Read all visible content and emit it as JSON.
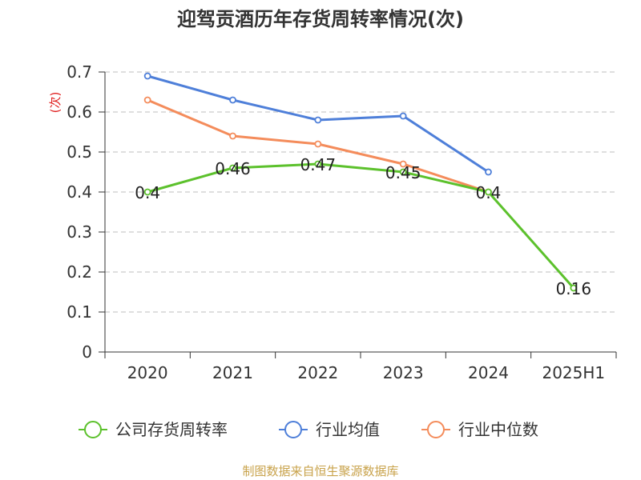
{
  "chart_data": {
    "type": "line",
    "title": "迎驾贡酒历年存货周转率情况(次)",
    "ylabel": "(次)",
    "xlabel": "",
    "categories": [
      "2020",
      "2021",
      "2022",
      "2023",
      "2024",
      "2025H1"
    ],
    "ylim": [
      0,
      0.7
    ],
    "yticks": [
      0,
      0.1,
      0.2,
      0.3,
      0.4,
      0.5,
      0.6,
      0.7
    ],
    "ytick_labels": [
      "0",
      "0.1",
      "0.2",
      "0.3",
      "0.4",
      "0.5",
      "0.6",
      "0.7"
    ],
    "grid": true,
    "legend_position": "bottom",
    "series": [
      {
        "name": "公司存货周转率",
        "color": "#5cc12c",
        "values": [
          0.4,
          0.46,
          0.47,
          0.45,
          0.4,
          0.16
        ],
        "data_labels": [
          "0.4",
          "0.46",
          "0.47",
          "0.45",
          "0.4",
          "0.16"
        ]
      },
      {
        "name": "行业均值",
        "color": "#4e7fd9",
        "values": [
          0.69,
          0.63,
          0.58,
          0.59,
          0.45,
          null
        ]
      },
      {
        "name": "行业中位数",
        "color": "#f48c5b",
        "values": [
          0.63,
          0.54,
          0.52,
          0.47,
          0.4,
          null
        ]
      }
    ],
    "source": "制图数据来自恒生聚源数据库"
  }
}
